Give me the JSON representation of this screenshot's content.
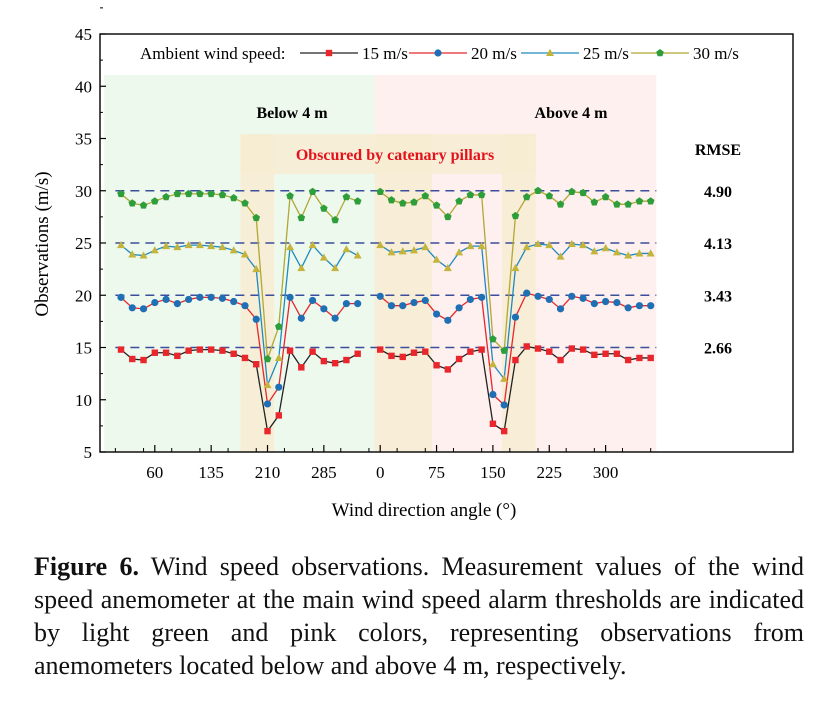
{
  "caption": {
    "label": "Figure 6.",
    "text": "Wind speed observations. Measurement values of the wind speed anemometer at the main wind speed alarm thresholds are indicated by light green and pink colors, representing observations from anemometers located below and above 4 m, respectively."
  },
  "chart_data": {
    "type": "line",
    "title": "",
    "xlabel": "Wind direction angle (°)",
    "ylabel": "Observations (m/s)",
    "ylim": [
      5,
      45
    ],
    "yticks": [
      5,
      10,
      15,
      20,
      25,
      30,
      35,
      40,
      45
    ],
    "x_tick_labels": [
      "60",
      "135",
      "210",
      "285",
      "0",
      "75",
      "150",
      "225",
      "300"
    ],
    "x_tick_positions_index": [
      3,
      8,
      13,
      18,
      23,
      28,
      33,
      38,
      43
    ],
    "legend": {
      "title": "Ambient wind speed:",
      "placement": "top",
      "entries": [
        "15 m/s",
        "20 m/s",
        "25 m/s",
        "30 m/s"
      ]
    },
    "regions": [
      {
        "label": "Below 4 m",
        "color": "#eef9ee",
        "from_index": -1.5,
        "to_index": 22.5
      },
      {
        "label": "Above 4 m",
        "color": "#fdf0ee",
        "from_index": 22.5,
        "to_index": 47.5
      }
    ],
    "obscured_label": "Obscured by catenary pillars",
    "obscured_color": "#f7ecd2",
    "obscured_ranges": [
      [
        10.6,
        13.6
      ],
      [
        33.8,
        36.8
      ],
      [
        22.5,
        27.6
      ]
    ],
    "reference_lines": [
      15,
      20,
      25,
      30
    ],
    "rmse_title": "RMSE",
    "rmse": [
      {
        "ref": 30,
        "value": "4.90"
      },
      {
        "ref": 25,
        "value": "4.13"
      },
      {
        "ref": 20,
        "value": "3.43"
      },
      {
        "ref": 15,
        "value": "2.66"
      }
    ],
    "x_index": [
      0,
      1,
      2,
      3,
      4,
      5,
      6,
      7,
      8,
      9,
      10,
      11,
      12,
      13,
      14,
      15,
      16,
      17,
      18,
      19,
      20,
      21,
      23,
      24,
      25,
      26,
      27,
      28,
      29,
      30,
      31,
      32,
      33,
      34,
      35,
      36,
      37,
      38,
      39,
      40,
      41,
      42,
      43,
      44,
      45,
      46,
      47
    ],
    "series": [
      {
        "name": "15 m/s",
        "color": "#e8262b",
        "line": "#222222",
        "marker": "square",
        "values": [
          14.8,
          13.9,
          13.8,
          14.5,
          14.5,
          14.2,
          14.7,
          14.8,
          14.8,
          14.7,
          14.4,
          14.0,
          13.4,
          7.0,
          8.5,
          14.7,
          13.1,
          14.6,
          13.7,
          13.5,
          13.8,
          14.4,
          14.8,
          14.2,
          14.1,
          14.5,
          14.6,
          13.3,
          12.9,
          13.9,
          14.6,
          14.8,
          7.7,
          7.0,
          13.8,
          15.1,
          14.9,
          14.6,
          13.8,
          14.9,
          14.8,
          14.3,
          14.4,
          14.4,
          13.8,
          14.0,
          14.0
        ]
      },
      {
        "name": "20 m/s",
        "color": "#1f6fb5",
        "line": "#e8262b",
        "marker": "circle",
        "values": [
          19.8,
          18.8,
          18.7,
          19.3,
          19.6,
          19.2,
          19.6,
          19.8,
          19.8,
          19.7,
          19.4,
          19.0,
          17.7,
          9.6,
          11.2,
          19.8,
          17.8,
          19.5,
          18.7,
          17.8,
          19.2,
          19.2,
          19.9,
          19.0,
          19.0,
          19.3,
          19.5,
          18.2,
          17.6,
          18.8,
          19.6,
          19.8,
          10.5,
          9.5,
          17.9,
          20.2,
          19.9,
          19.6,
          18.7,
          19.9,
          19.7,
          19.2,
          19.4,
          19.3,
          18.8,
          19.0,
          19.0
        ]
      },
      {
        "name": "25 m/s",
        "color": "#c4b43c",
        "line": "#1f8ac0",
        "marker": "triangle",
        "values": [
          24.8,
          23.9,
          23.8,
          24.3,
          24.7,
          24.6,
          24.8,
          24.8,
          24.7,
          24.6,
          24.3,
          23.9,
          22.5,
          11.4,
          14.0,
          24.6,
          22.6,
          24.8,
          23.6,
          22.6,
          24.4,
          23.8,
          24.8,
          24.1,
          24.2,
          24.3,
          24.6,
          23.4,
          22.6,
          24.1,
          24.7,
          24.7,
          13.4,
          12.0,
          22.6,
          24.6,
          24.9,
          24.8,
          23.7,
          24.9,
          24.8,
          24.2,
          24.5,
          24.1,
          23.8,
          24.0,
          24.0
        ]
      },
      {
        "name": "30 m/s",
        "color": "#2e9e3a",
        "line": "#b0a832",
        "marker": "pentagon",
        "values": [
          29.7,
          28.8,
          28.6,
          29.0,
          29.4,
          29.7,
          29.7,
          29.7,
          29.7,
          29.6,
          29.3,
          28.8,
          27.4,
          13.9,
          17.0,
          29.5,
          27.4,
          29.9,
          28.3,
          27.2,
          29.4,
          29.0,
          29.9,
          29.1,
          28.8,
          28.9,
          29.5,
          28.6,
          27.5,
          29.0,
          29.6,
          29.6,
          15.8,
          14.7,
          27.6,
          29.4,
          30.0,
          29.5,
          28.7,
          29.9,
          29.8,
          28.9,
          29.4,
          28.7,
          28.7,
          29.0,
          29.0
        ]
      }
    ]
  }
}
